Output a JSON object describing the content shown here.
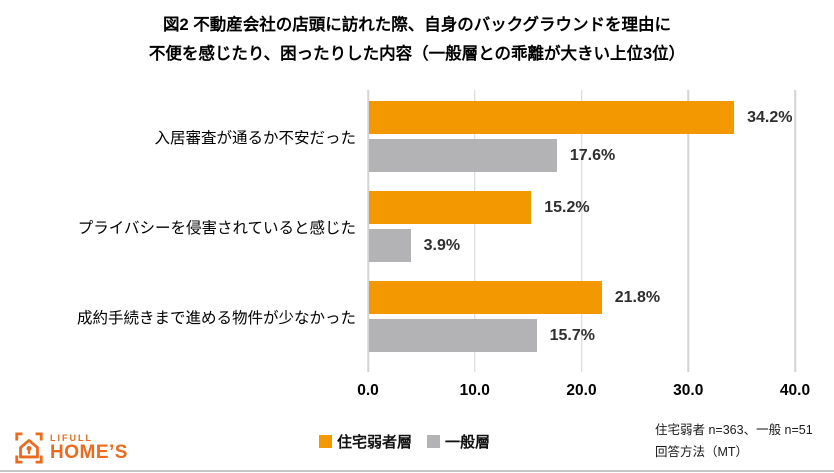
{
  "title": {
    "line1": "図2 不動産会社の店頭に訪れた際、自身のバックグラウンドを理由に",
    "line2": "不便を感じたり、困ったりした内容（一般層との乖離が大きい上位3位）"
  },
  "chart_data": {
    "type": "bar",
    "orientation": "horizontal",
    "categories": [
      "入居審査が通るか不安だった",
      "プライバシーを侵害されていると感じた",
      "成約手続きまで進める物件が少なかった"
    ],
    "series": [
      {
        "name": "住宅弱者層",
        "color": "#f39800",
        "values": [
          34.2,
          15.2,
          21.8
        ]
      },
      {
        "name": "一般層",
        "color": "#b3b3b6",
        "values": [
          17.6,
          3.9,
          15.7
        ]
      }
    ],
    "value_suffix": "%",
    "xlim": [
      0,
      40
    ],
    "x_ticks": [
      "0.0",
      "10.0",
      "20.0",
      "30.0",
      "40.0"
    ],
    "grid": true,
    "legend_position": "bottom"
  },
  "legend": {
    "items": [
      {
        "label": "住宅弱者層",
        "color": "#f39800"
      },
      {
        "label": "一般層",
        "color": "#b3b3b6"
      }
    ]
  },
  "footnote": {
    "line1": "住宅弱者 n=363、一般 n=51",
    "line2": "回答方法（MT）"
  },
  "logo": {
    "brand_top": "LIFULL",
    "brand_bottom": "HOME’S",
    "color": "#ed6b1e"
  },
  "colors": {
    "bar_primary": "#f39800",
    "bar_secondary": "#b3b3b6",
    "gridline": "#d4d4d4",
    "value_label": "#2e2e2e"
  }
}
